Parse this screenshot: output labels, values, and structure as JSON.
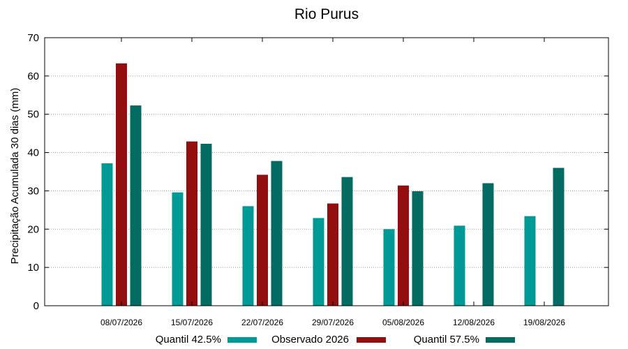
{
  "chart_data": {
    "type": "bar",
    "title": "Rio Purus",
    "ylabel": "Precipitação Acumulada 30 dias (mm)",
    "xlabel": "",
    "ylim": [
      0,
      70
    ],
    "yticks": [
      0,
      10,
      20,
      30,
      40,
      50,
      60,
      70
    ],
    "grid": true,
    "legend_position": "bottom",
    "categories": [
      "08/07/2026",
      "15/07/2026",
      "22/07/2026",
      "29/07/2026",
      "05/08/2026",
      "12/08/2026",
      "19/08/2026"
    ],
    "series": [
      {
        "name": "Quantil 42.5%",
        "color": "#009a96",
        "values": [
          37.2,
          29.6,
          26.0,
          22.9,
          20.0,
          20.9,
          23.4
        ]
      },
      {
        "name": "Observado 2026",
        "color": "#930e0e",
        "values": [
          63.3,
          42.9,
          34.2,
          26.7,
          31.4,
          null,
          null
        ]
      },
      {
        "name": "Quantil 57.5%",
        "color": "#036b62",
        "values": [
          52.3,
          42.3,
          37.8,
          33.6,
          29.9,
          32.0,
          36.0
        ]
      }
    ]
  }
}
